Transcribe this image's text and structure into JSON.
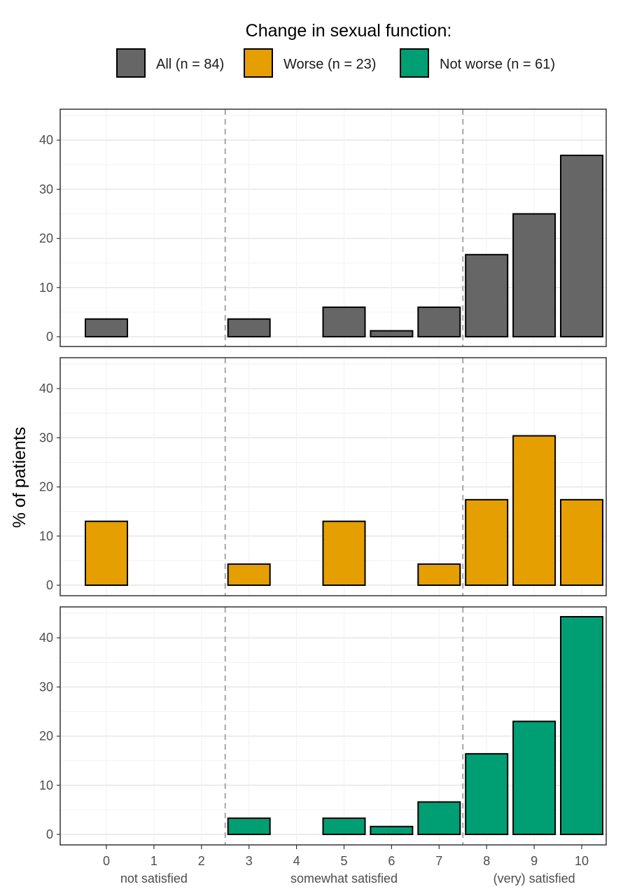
{
  "chart_data": {
    "type": "bar",
    "legend": {
      "title": "Change in sexual function:",
      "placement": "top",
      "entries": [
        {
          "label": "All (n = 84)",
          "color": "#666666"
        },
        {
          "label": "Worse (n = 23)",
          "color": "#E69F00"
        },
        {
          "label": "Not worse (n = 61)",
          "color": "#009E73"
        }
      ]
    },
    "ylabel": "% of patients",
    "ylim": [
      0,
      46
    ],
    "yticks": [
      "0",
      "10",
      "20",
      "30",
      "40"
    ],
    "yticks_values": [
      0,
      10,
      20,
      30,
      40
    ],
    "grid": true,
    "categories": [
      "0",
      "1",
      "2",
      "3",
      "4",
      "5",
      "6",
      "7",
      "8",
      "9",
      "10"
    ],
    "x_values": [
      0,
      1,
      2,
      3,
      4,
      5,
      6,
      7,
      8,
      9,
      10
    ],
    "reference_lines_x": [
      2.5,
      7.5
    ],
    "x_groups": [
      {
        "label": "not satisfied",
        "center": 1
      },
      {
        "label": "somewhat satisfied",
        "center": 5
      },
      {
        "label": "(very) satisfied",
        "center": 9
      }
    ],
    "series": [
      {
        "name": "All (n = 84)",
        "color": "#666666",
        "values": [
          3.6,
          0,
          0,
          3.6,
          0,
          6.0,
          1.2,
          6.0,
          16.7,
          25.0,
          36.9
        ]
      },
      {
        "name": "Worse (n = 23)",
        "color": "#E69F00",
        "values": [
          13.0,
          0,
          0,
          4.3,
          0,
          13.0,
          0,
          4.3,
          17.4,
          30.4,
          17.4
        ]
      },
      {
        "name": "Not worse (n = 61)",
        "color": "#009E73",
        "values": [
          0,
          0,
          0,
          3.3,
          0,
          3.3,
          1.6,
          6.6,
          16.4,
          23.0,
          44.3
        ]
      }
    ]
  }
}
